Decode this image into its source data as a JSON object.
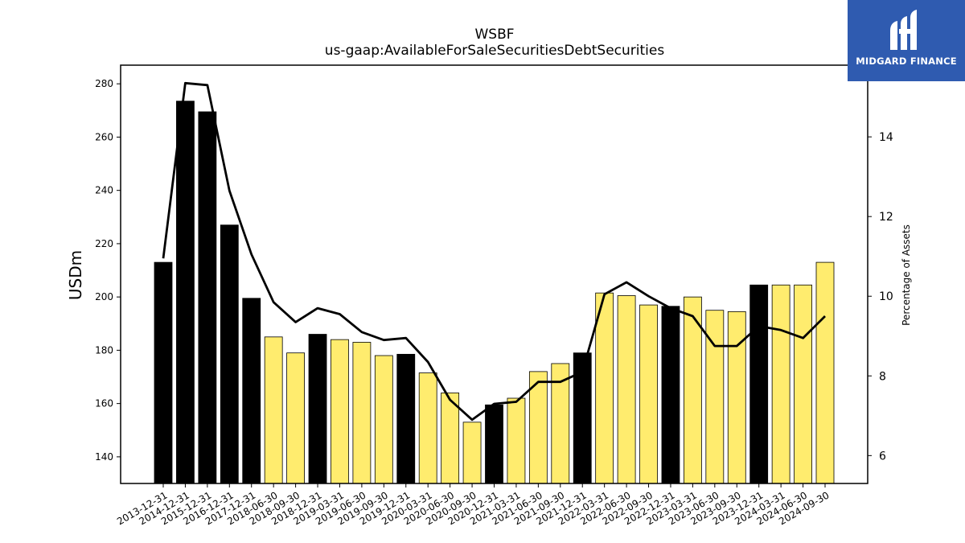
{
  "chart_data": {
    "type": "bar",
    "title": "WSBF",
    "subtitle": "us-gaap:AvailableForSaleSecuritiesDebtSecurities",
    "ylabel": "USDm",
    "y2label": "Percentage of Assets",
    "ylim": [
      130,
      287
    ],
    "y2lim": [
      5.3,
      15.8
    ],
    "yticks": [
      140,
      160,
      180,
      200,
      220,
      240,
      260,
      280
    ],
    "y2ticks": [
      6,
      8,
      10,
      12,
      14
    ],
    "categories": [
      "2013-12-31",
      "2014-12-31",
      "2015-12-31",
      "2016-12-31",
      "2017-12-31",
      "2018-06-30",
      "2018-09-30",
      "2018-12-31",
      "2019-03-31",
      "2019-06-30",
      "2019-09-30",
      "2019-12-31",
      "2020-03-31",
      "2020-06-30",
      "2020-09-30",
      "2020-12-31",
      "2021-03-31",
      "2021-06-30",
      "2021-09-30",
      "2021-12-31",
      "2022-03-31",
      "2022-06-30",
      "2022-09-30",
      "2022-12-31",
      "2023-03-31",
      "2023-06-30",
      "2023-09-30",
      "2023-12-31",
      "2024-03-31",
      "2024-06-30",
      "2024-09-30"
    ],
    "series": [
      {
        "kind": "bar",
        "values": [
          213,
          273.5,
          269.5,
          227,
          199.5,
          185,
          179,
          186,
          184,
          183,
          178,
          178.5,
          171.5,
          164,
          153,
          159.5,
          162,
          172,
          175,
          179,
          201.5,
          200.5,
          197,
          196.5,
          200,
          195,
          194.5,
          204.5,
          204.5,
          204.5,
          213
        ],
        "annual": [
          true,
          true,
          true,
          true,
          true,
          false,
          false,
          true,
          false,
          false,
          false,
          true,
          false,
          false,
          false,
          true,
          false,
          false,
          false,
          true,
          false,
          false,
          false,
          true,
          false,
          false,
          false,
          true,
          false,
          false,
          false
        ]
      },
      {
        "kind": "line",
        "axis": "right",
        "values": [
          10.95,
          15.35,
          15.3,
          12.65,
          11.05,
          9.85,
          9.35,
          9.7,
          9.55,
          9.1,
          8.9,
          8.95,
          8.35,
          7.4,
          6.9,
          7.3,
          7.35,
          7.85,
          7.85,
          8.1,
          10.05,
          10.35,
          10.0,
          9.7,
          9.5,
          8.75,
          8.75,
          9.25,
          9.15,
          8.95,
          9.5
        ]
      }
    ],
    "colors": {
      "annual_bar": "#000000",
      "interim_bar": "#ffec6e",
      "line": "#000000"
    }
  },
  "logo": {
    "text": "MIDGARD FINANCE",
    "background": "#2f5bb0"
  }
}
